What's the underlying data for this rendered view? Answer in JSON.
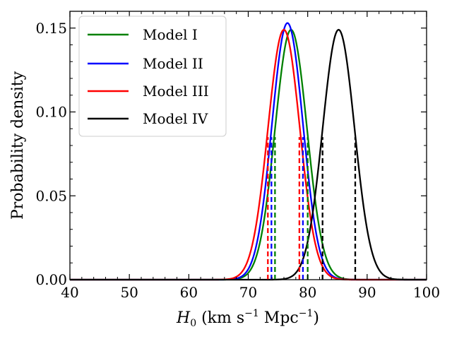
{
  "chart_data": {
    "type": "line",
    "title": "",
    "xlabel": "H₀ (km s⁻¹ Mpc⁻¹)",
    "ylabel": "Probability density",
    "xlim": [
      40,
      100
    ],
    "ylim": [
      0,
      0.16
    ],
    "xticks": [
      40,
      50,
      60,
      70,
      80,
      90,
      100
    ],
    "xtick_labels": [
      "40",
      "50",
      "60",
      "70",
      "80",
      "90",
      "100"
    ],
    "yticks": [
      0,
      0.05,
      0.1,
      0.15
    ],
    "ytick_labels": [
      "0.00",
      "0.05",
      "0.10",
      "0.15"
    ],
    "legend_position": "top-left",
    "series": [
      {
        "name": "Model I",
        "color": "#008000",
        "peak_x": 77.2,
        "peak_y": 0.149,
        "sigma": 2.68,
        "interval": [
          74.5,
          80.0
        ]
      },
      {
        "name": "Model II",
        "color": "#0000ff",
        "peak_x": 76.6,
        "peak_y": 0.153,
        "sigma": 2.61,
        "interval": [
          73.9,
          79.2
        ]
      },
      {
        "name": "Model III",
        "color": "#ff0000",
        "peak_x": 76.0,
        "peak_y": 0.149,
        "sigma": 2.68,
        "interval": [
          73.3,
          78.6
        ]
      },
      {
        "name": "Model IV",
        "color": "#000000",
        "peak_x": 85.2,
        "peak_y": 0.149,
        "sigma": 2.68,
        "interval": [
          82.5,
          88.0
        ]
      }
    ],
    "dashed_line_height": 0.085
  }
}
